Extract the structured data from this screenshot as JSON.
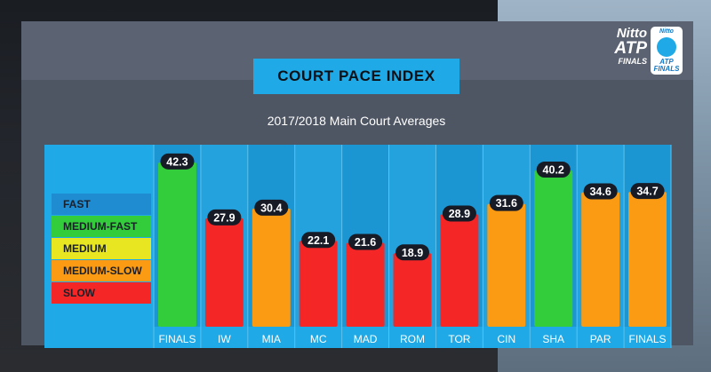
{
  "branding": {
    "line1": "Nitto",
    "line2": "ATP",
    "line3": "FINALS",
    "badge_top": "Nitto",
    "badge_bottom1": "ATP",
    "badge_bottom2": "FINALS"
  },
  "colors": {
    "fast": "#1f8bd0",
    "medium_fast": "#33cc3a",
    "medium": "#e8e620",
    "medium_slow": "#fb9b14",
    "slow": "#f52626",
    "title_bg": "#1fa9e6",
    "chart_bg": "#1fa9e6",
    "label_pill": "#161b26"
  },
  "chart_data": {
    "type": "bar",
    "title": "COURT PACE INDEX",
    "subtitle": "2017/2018 Main Court Averages",
    "categories": [
      "FINALS",
      "IW",
      "MIA",
      "MC",
      "MAD",
      "ROM",
      "TOR",
      "CIN",
      "SHA",
      "PAR",
      "FINALS"
    ],
    "values": [
      42.3,
      27.9,
      30.4,
      22.1,
      21.6,
      18.9,
      28.9,
      31.6,
      40.2,
      34.6,
      34.7
    ],
    "value_labels": [
      "42.3",
      "27.9",
      "30.4",
      "22.1",
      "21.6",
      "18.9",
      "28.9",
      "31.6",
      "40.2",
      "34.6",
      "34.7"
    ],
    "bar_classes": [
      "medium_fast",
      "slow",
      "medium_slow",
      "slow",
      "slow",
      "slow",
      "slow",
      "medium_slow",
      "medium_fast",
      "medium_slow",
      "medium_slow"
    ],
    "ylim": [
      0,
      45
    ],
    "grid": false,
    "legend_position": "left",
    "legend": [
      {
        "label": "FAST",
        "class": "fast"
      },
      {
        "label": "MEDIUM-FAST",
        "class": "medium_fast"
      },
      {
        "label": "MEDIUM",
        "class": "medium"
      },
      {
        "label": "MEDIUM-SLOW",
        "class": "medium_slow"
      },
      {
        "label": "SLOW",
        "class": "slow"
      }
    ]
  }
}
